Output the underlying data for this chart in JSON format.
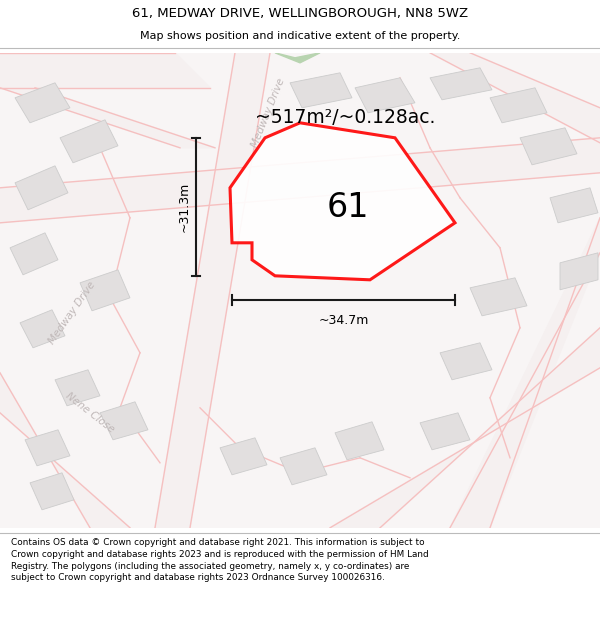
{
  "title_line1": "61, MEDWAY DRIVE, WELLINGBOROUGH, NN8 5WZ",
  "title_line2": "Map shows position and indicative extent of the property.",
  "footer_text": "Contains OS data © Crown copyright and database right 2021. This information is subject to Crown copyright and database rights 2023 and is reproduced with the permission of HM Land Registry. The polygons (including the associated geometry, namely x, y co-ordinates) are subject to Crown copyright and database rights 2023 Ordnance Survey 100026316.",
  "area_label": "~517m²/~0.128ac.",
  "number_label": "61",
  "width_label": "~34.7m",
  "height_label": "~31.3m",
  "map_bg": "#f8f5f5",
  "plot_color_stroke": "#ff0000",
  "road_color": "#f5c0c0",
  "road_fill": "#f5f0f0",
  "building_color": "#e2dfdf",
  "building_stroke": "#cccccc",
  "green_patch_color": "#b8d4b0",
  "road_label_color": "#c0b8b8",
  "dim_color": "#1a1a1a"
}
